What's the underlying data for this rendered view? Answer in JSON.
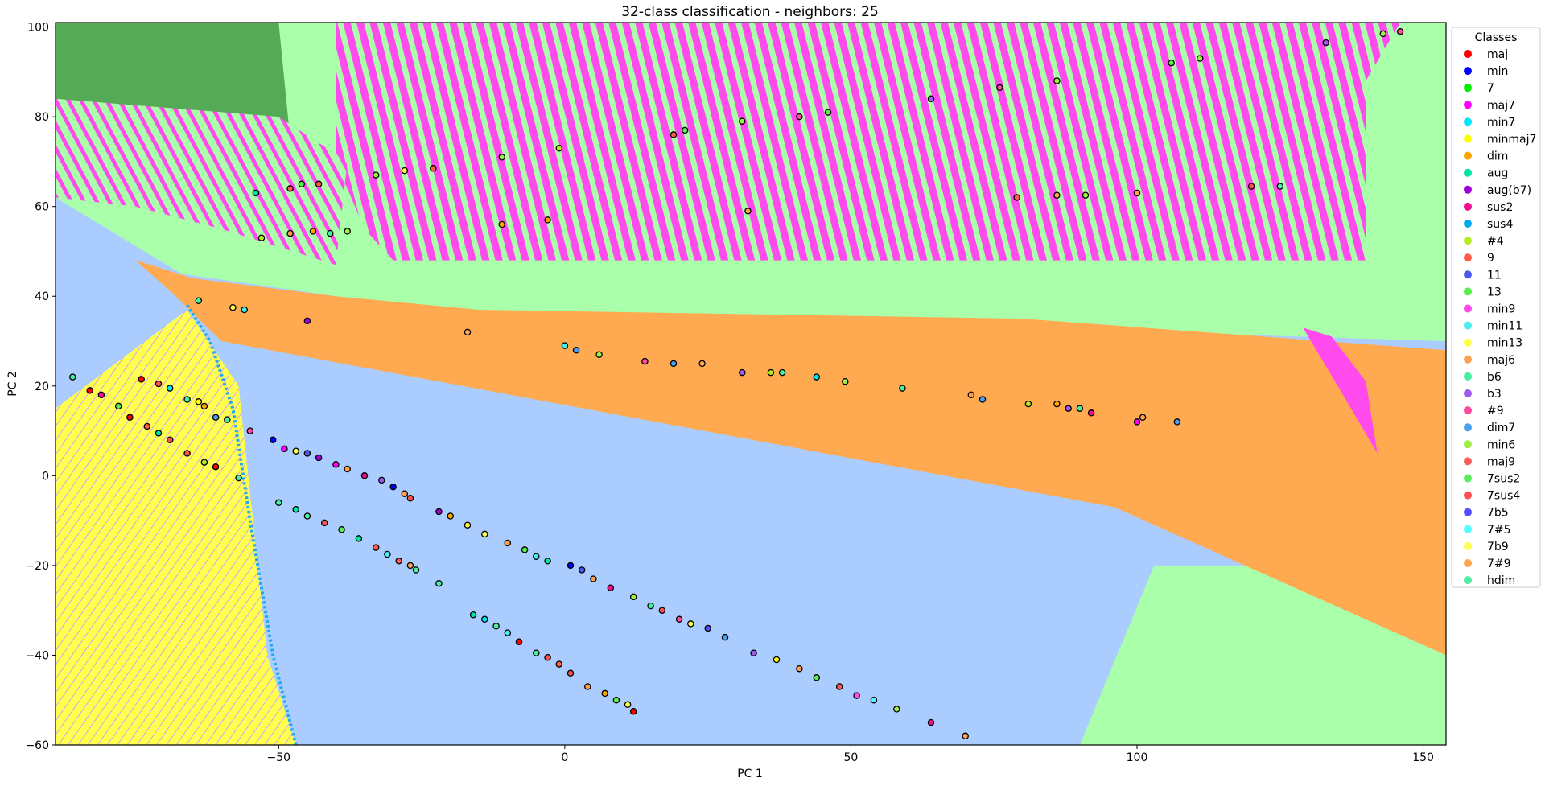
{
  "chart_data": {
    "type": "scatter",
    "title": "32-class classification - neighbors: 25",
    "xlabel": "PC 1",
    "ylabel": "PC 2",
    "xlim": [
      -89,
      154
    ],
    "ylim": [
      -60,
      101
    ],
    "x_ticks": [
      -50,
      0,
      50,
      100,
      150
    ],
    "y_ticks": [
      -60,
      -40,
      -20,
      0,
      20,
      40,
      60,
      80,
      100
    ],
    "x_tick_labels": [
      "−50",
      "0",
      "50",
      "100",
      "150"
    ],
    "y_tick_labels": [
      "−60",
      "−40",
      "−20",
      "0",
      "20",
      "40",
      "60",
      "80",
      "100"
    ],
    "grid": false,
    "legend_title": "Classes",
    "legend_position": "outside-right",
    "background": "decision-regions",
    "classes": [
      {
        "name": "maj",
        "color": "#ff0000"
      },
      {
        "name": "min",
        "color": "#0000ff"
      },
      {
        "name": "7",
        "color": "#00ee00"
      },
      {
        "name": "maj7",
        "color": "#ff00ff"
      },
      {
        "name": "min7",
        "color": "#00e5ff"
      },
      {
        "name": "minmaj7",
        "color": "#ffff00"
      },
      {
        "name": "dim",
        "color": "#ffa500"
      },
      {
        "name": "aug",
        "color": "#00e5a0"
      },
      {
        "name": "aug(b7)",
        "color": "#a000d8"
      },
      {
        "name": "sus2",
        "color": "#ee1090"
      },
      {
        "name": "sus4",
        "color": "#00aaee"
      },
      {
        "name": "#4",
        "color": "#b8ea20"
      },
      {
        "name": "9",
        "color": "#ff5a4a"
      },
      {
        "name": "11",
        "color": "#4a5aee"
      },
      {
        "name": "13",
        "color": "#5aee4a"
      },
      {
        "name": "min9",
        "color": "#ff4aee"
      },
      {
        "name": "min11",
        "color": "#4aeeee"
      },
      {
        "name": "min13",
        "color": "#ffff4a"
      },
      {
        "name": "maj6",
        "color": "#ffa050"
      },
      {
        "name": "b6",
        "color": "#4aeea0"
      },
      {
        "name": "b3",
        "color": "#a05aee"
      },
      {
        "name": "#9",
        "color": "#ff4aa0"
      },
      {
        "name": "dim7",
        "color": "#4aa0ee"
      },
      {
        "name": "min6",
        "color": "#a0ee4a"
      },
      {
        "name": "maj9",
        "color": "#ff5a5a"
      },
      {
        "name": "7sus2",
        "color": "#5aee5a"
      },
      {
        "name": "7sus4",
        "color": "#ff5050"
      },
      {
        "name": "7b5",
        "color": "#5050ff"
      },
      {
        "name": "7#5",
        "color": "#50ffff"
      },
      {
        "name": "7b9",
        "color": "#ffff50"
      },
      {
        "name": "7#9",
        "color": "#ffa550"
      },
      {
        "name": "hdim",
        "color": "#50eea0"
      }
    ],
    "points": [
      {
        "x": -74,
        "y": 21.5,
        "c": "maj"
      },
      {
        "x": -71,
        "y": 20.5,
        "c": "7sus4"
      },
      {
        "x": -69,
        "y": 19.5,
        "c": "min7"
      },
      {
        "x": -66,
        "y": 17,
        "c": "b6"
      },
      {
        "x": -64,
        "y": 16.5,
        "c": "minmaj7"
      },
      {
        "x": -63,
        "y": 15.5,
        "c": "dim"
      },
      {
        "x": -61,
        "y": 13,
        "c": "dim7"
      },
      {
        "x": -59,
        "y": 12.5,
        "c": "hdim"
      },
      {
        "x": -55,
        "y": 10,
        "c": "#9"
      },
      {
        "x": -51,
        "y": 8,
        "c": "min"
      },
      {
        "x": -49,
        "y": 6,
        "c": "maj7"
      },
      {
        "x": -47,
        "y": 5.5,
        "c": "7b9"
      },
      {
        "x": -45,
        "y": 5,
        "c": "11"
      },
      {
        "x": -43,
        "y": 4,
        "c": "aug(b7)"
      },
      {
        "x": -40,
        "y": 2.5,
        "c": "maj7"
      },
      {
        "x": -38,
        "y": 1.5,
        "c": "7#9"
      },
      {
        "x": -35,
        "y": 0,
        "c": "sus2"
      },
      {
        "x": -32,
        "y": -1,
        "c": "b3"
      },
      {
        "x": -30,
        "y": -2.5,
        "c": "min"
      },
      {
        "x": -28,
        "y": -4,
        "c": "maj6"
      },
      {
        "x": -27,
        "y": -5,
        "c": "7sus4"
      },
      {
        "x": -22,
        "y": -8,
        "c": "aug(b7)"
      },
      {
        "x": -20,
        "y": -9,
        "c": "dim"
      },
      {
        "x": -17,
        "y": -11,
        "c": "min13"
      },
      {
        "x": -14,
        "y": -13,
        "c": "7b9"
      },
      {
        "x": -10,
        "y": -15,
        "c": "maj6"
      },
      {
        "x": -7,
        "y": -16.5,
        "c": "13"
      },
      {
        "x": -5,
        "y": -18,
        "c": "min11"
      },
      {
        "x": -3,
        "y": -19,
        "c": "aug"
      },
      {
        "x": 1,
        "y": -20,
        "c": "min"
      },
      {
        "x": 3,
        "y": -21,
        "c": "11"
      },
      {
        "x": 5,
        "y": -23,
        "c": "maj6"
      },
      {
        "x": 8,
        "y": -25,
        "c": "sus2"
      },
      {
        "x": 12,
        "y": -27,
        "c": "min6"
      },
      {
        "x": 15,
        "y": -29,
        "c": "b6"
      },
      {
        "x": 17,
        "y": -30,
        "c": "7sus4"
      },
      {
        "x": 20,
        "y": -32,
        "c": "#9"
      },
      {
        "x": 22,
        "y": -33,
        "c": "min13"
      },
      {
        "x": 25,
        "y": -34,
        "c": "7b5"
      },
      {
        "x": 28,
        "y": -36,
        "c": "dim7"
      },
      {
        "x": 33,
        "y": -39.5,
        "c": "b3"
      },
      {
        "x": 37,
        "y": -41,
        "c": "minmaj7"
      },
      {
        "x": 41,
        "y": -43,
        "c": "maj6"
      },
      {
        "x": 44,
        "y": -45,
        "c": "7sus2"
      },
      {
        "x": 48,
        "y": -47,
        "c": "maj9"
      },
      {
        "x": 51,
        "y": -49,
        "c": "min9"
      },
      {
        "x": 54,
        "y": -50,
        "c": "7#5"
      },
      {
        "x": 58,
        "y": -52,
        "c": "min6"
      },
      {
        "x": 64,
        "y": -55,
        "c": "sus2"
      },
      {
        "x": 70,
        "y": -58,
        "c": "7#9"
      },
      {
        "x": -50,
        "y": -6,
        "c": "b6"
      },
      {
        "x": -47,
        "y": -7.5,
        "c": "aug"
      },
      {
        "x": -45,
        "y": -9,
        "c": "hdim"
      },
      {
        "x": -42,
        "y": -10.5,
        "c": "7sus4"
      },
      {
        "x": -39,
        "y": -12,
        "c": "7sus2"
      },
      {
        "x": -36,
        "y": -14,
        "c": "aug"
      },
      {
        "x": -33,
        "y": -16,
        "c": "9"
      },
      {
        "x": -31,
        "y": -17.5,
        "c": "min11"
      },
      {
        "x": -29,
        "y": -19,
        "c": "maj9"
      },
      {
        "x": -27,
        "y": -20,
        "c": "7#9"
      },
      {
        "x": -26,
        "y": -21,
        "c": "hdim"
      },
      {
        "x": -22,
        "y": -24,
        "c": "b6"
      },
      {
        "x": -16,
        "y": -31,
        "c": "aug"
      },
      {
        "x": -14,
        "y": -32,
        "c": "min7"
      },
      {
        "x": -12,
        "y": -33.5,
        "c": "hdim"
      },
      {
        "x": -10,
        "y": -35,
        "c": "min11"
      },
      {
        "x": -8,
        "y": -37,
        "c": "maj"
      },
      {
        "x": -5,
        "y": -39.5,
        "c": "b6"
      },
      {
        "x": -3,
        "y": -40.5,
        "c": "7sus4"
      },
      {
        "x": -1,
        "y": -42,
        "c": "9"
      },
      {
        "x": 1,
        "y": -44,
        "c": "7sus4"
      },
      {
        "x": 4,
        "y": -47,
        "c": "maj6"
      },
      {
        "x": 7,
        "y": -48.5,
        "c": "dim"
      },
      {
        "x": 9,
        "y": -50,
        "c": "7sus2"
      },
      {
        "x": 11,
        "y": -51,
        "c": "min13"
      },
      {
        "x": 12,
        "y": -52.5,
        "c": "maj"
      },
      {
        "x": -86,
        "y": 22,
        "c": "b6"
      },
      {
        "x": -83,
        "y": 19,
        "c": "maj"
      },
      {
        "x": -81,
        "y": 18,
        "c": "sus2"
      },
      {
        "x": -78,
        "y": 15.5,
        "c": "7sus2"
      },
      {
        "x": -76,
        "y": 13,
        "c": "maj"
      },
      {
        "x": -73,
        "y": 11,
        "c": "9"
      },
      {
        "x": -71,
        "y": 9.5,
        "c": "aug"
      },
      {
        "x": -69,
        "y": 8,
        "c": "7sus4"
      },
      {
        "x": -66,
        "y": 5,
        "c": "7sus4"
      },
      {
        "x": -63,
        "y": 3,
        "c": "#4"
      },
      {
        "x": -61,
        "y": 2,
        "c": "maj"
      },
      {
        "x": -57,
        "y": -0.5,
        "c": "b6"
      },
      {
        "x": -64,
        "y": 39,
        "c": "b6"
      },
      {
        "x": -58,
        "y": 37.5,
        "c": "min13"
      },
      {
        "x": -56,
        "y": 37,
        "c": "min11"
      },
      {
        "x": -45,
        "y": 34.5,
        "c": "aug(b7)"
      },
      {
        "x": -17,
        "y": 32,
        "c": "7#9"
      },
      {
        "x": 0,
        "y": 29,
        "c": "min11"
      },
      {
        "x": 2,
        "y": 28,
        "c": "dim7"
      },
      {
        "x": 6,
        "y": 27,
        "c": "min6"
      },
      {
        "x": 14,
        "y": 25.5,
        "c": "#9"
      },
      {
        "x": 19,
        "y": 25,
        "c": "dim7"
      },
      {
        "x": 24,
        "y": 25,
        "c": "7#9"
      },
      {
        "x": 31,
        "y": 23,
        "c": "b3"
      },
      {
        "x": 36,
        "y": 23,
        "c": "#4"
      },
      {
        "x": 38,
        "y": 23,
        "c": "b6"
      },
      {
        "x": 44,
        "y": 22,
        "c": "min7"
      },
      {
        "x": 49,
        "y": 21,
        "c": "min6"
      },
      {
        "x": 59,
        "y": 19.5,
        "c": "hdim"
      },
      {
        "x": 71,
        "y": 18,
        "c": "maj6"
      },
      {
        "x": 73,
        "y": 17,
        "c": "dim7"
      },
      {
        "x": 81,
        "y": 16,
        "c": "#4"
      },
      {
        "x": 86,
        "y": 16,
        "c": "dim"
      },
      {
        "x": 88,
        "y": 15,
        "c": "b3"
      },
      {
        "x": 90,
        "y": 15,
        "c": "b6"
      },
      {
        "x": 92,
        "y": 14,
        "c": "sus2"
      },
      {
        "x": 100,
        "y": 12,
        "c": "maj7"
      },
      {
        "x": 101,
        "y": 13,
        "c": "7#9"
      },
      {
        "x": 107,
        "y": 12,
        "c": "dim7"
      },
      {
        "x": -53,
        "y": 53,
        "c": "#4"
      },
      {
        "x": -48,
        "y": 54,
        "c": "7#9"
      },
      {
        "x": -44,
        "y": 54.5,
        "c": "dim"
      },
      {
        "x": -41,
        "y": 54,
        "c": "b6"
      },
      {
        "x": -38,
        "y": 54.5,
        "c": "min6"
      },
      {
        "x": -54,
        "y": 63,
        "c": "aug"
      },
      {
        "x": -48,
        "y": 64,
        "c": "maj9"
      },
      {
        "x": -46,
        "y": 65,
        "c": "13"
      },
      {
        "x": -43,
        "y": 65,
        "c": "9"
      },
      {
        "x": -33,
        "y": 67,
        "c": "min6"
      },
      {
        "x": -28,
        "y": 68,
        "c": "min13"
      },
      {
        "x": -23,
        "y": 68.5,
        "c": "9"
      },
      {
        "x": -11,
        "y": 71,
        "c": "min6"
      },
      {
        "x": -11,
        "y": 56,
        "c": "dim"
      },
      {
        "x": -3,
        "y": 57,
        "c": "dim"
      },
      {
        "x": -1,
        "y": 73,
        "c": "#4"
      },
      {
        "x": 19,
        "y": 76,
        "c": "9"
      },
      {
        "x": 21,
        "y": 77,
        "c": "7sus2"
      },
      {
        "x": 31,
        "y": 79,
        "c": "min6"
      },
      {
        "x": 32,
        "y": 59,
        "c": "7#9"
      },
      {
        "x": 41,
        "y": 80,
        "c": "#9"
      },
      {
        "x": 46,
        "y": 81,
        "c": "13"
      },
      {
        "x": 64,
        "y": 84,
        "c": "b3"
      },
      {
        "x": 76,
        "y": 86.5,
        "c": "#9"
      },
      {
        "x": 79,
        "y": 62,
        "c": "maj9"
      },
      {
        "x": 86,
        "y": 88,
        "c": "min6"
      },
      {
        "x": 86,
        "y": 62.5,
        "c": "7#9"
      },
      {
        "x": 91,
        "y": 62.5,
        "c": "min6"
      },
      {
        "x": 100,
        "y": 63,
        "c": "7#9"
      },
      {
        "x": 106,
        "y": 92,
        "c": "13"
      },
      {
        "x": 111,
        "y": 93,
        "c": "min6"
      },
      {
        "x": 120,
        "y": 64.5,
        "c": "7sus4"
      },
      {
        "x": 125,
        "y": 64.5,
        "c": "hdim"
      },
      {
        "x": 133,
        "y": 96.5,
        "c": "b3"
      },
      {
        "x": 143,
        "y": 98.5,
        "c": "min6"
      },
      {
        "x": 146,
        "y": 99,
        "c": "#9"
      }
    ]
  }
}
